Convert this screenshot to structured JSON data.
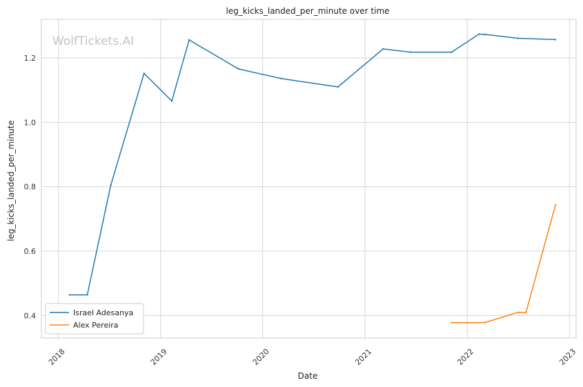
{
  "chart_data": {
    "type": "line",
    "title": "leg_kicks_landed_per_minute over time",
    "xlabel": "Date",
    "ylabel": "leg_kicks_landed_per_minute",
    "watermark": "WolfTickets.AI",
    "x_ticks": [
      "2018",
      "2019",
      "2020",
      "2021",
      "2022",
      "2023"
    ],
    "y_ticks": [
      "0.4",
      "0.6",
      "0.8",
      "1.0",
      "1.2"
    ],
    "xlim": [
      "2017-11-01",
      "2023-01-25"
    ],
    "ylim": [
      0.33,
      1.32
    ],
    "grid": true,
    "legend_position": "lower-left",
    "series": [
      {
        "name": "Israel Adesanya",
        "color": "#1f77b4",
        "points": [
          {
            "x": "2018-02-10",
            "y": 0.464
          },
          {
            "x": "2018-04-14",
            "y": 0.464
          },
          {
            "x": "2018-07-07",
            "y": 0.805
          },
          {
            "x": "2018-11-03",
            "y": 1.152
          },
          {
            "x": "2019-02-10",
            "y": 1.066
          },
          {
            "x": "2019-04-13",
            "y": 1.256
          },
          {
            "x": "2019-10-06",
            "y": 1.166
          },
          {
            "x": "2020-03-07",
            "y": 1.136
          },
          {
            "x": "2020-09-26",
            "y": 1.11
          },
          {
            "x": "2021-03-06",
            "y": 1.228
          },
          {
            "x": "2021-06-12",
            "y": 1.218
          },
          {
            "x": "2021-11-06",
            "y": 1.218
          },
          {
            "x": "2022-02-12",
            "y": 1.274
          },
          {
            "x": "2022-03-05",
            "y": 1.273
          },
          {
            "x": "2022-07-02",
            "y": 1.261
          },
          {
            "x": "2022-11-12",
            "y": 1.257
          }
        ]
      },
      {
        "name": "Alex Pereira",
        "color": "#ff7f0e",
        "points": [
          {
            "x": "2021-11-06",
            "y": 0.378
          },
          {
            "x": "2022-03-05",
            "y": 0.378
          },
          {
            "x": "2022-07-02",
            "y": 0.41
          },
          {
            "x": "2022-07-30",
            "y": 0.41
          },
          {
            "x": "2022-11-12",
            "y": 0.743
          }
        ]
      }
    ]
  }
}
